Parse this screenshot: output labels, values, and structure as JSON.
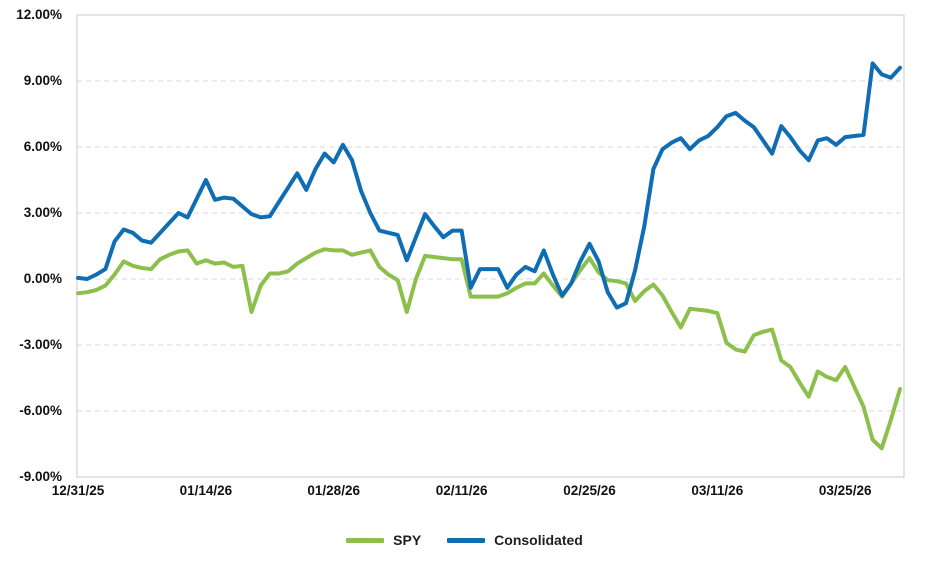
{
  "chart_data": {
    "type": "line",
    "title": "",
    "xlabel": "",
    "ylabel": "",
    "ylim": [
      -9,
      12
    ],
    "grid": "horizontal-dashed",
    "legend_position": "bottom-center",
    "background_color": "#ffffff",
    "gridline_color": "#d9d9d9",
    "border_color": "#c8c8c8",
    "axis_text_color": "#111111",
    "y_ticks": [
      "12.00%",
      "9.00%",
      "6.00%",
      "3.00%",
      "0.00%",
      "-3.00%",
      "-6.00%",
      "-9.00%"
    ],
    "y_tick_values": [
      12,
      9,
      6,
      3,
      0,
      -3,
      -6,
      -9
    ],
    "gridline_values": [
      9,
      6,
      3,
      0,
      -3,
      -6
    ],
    "x_labels": [
      "12/31/25",
      "01/14/26",
      "01/28/26",
      "02/11/26",
      "02/25/26",
      "03/11/26",
      "03/25/26"
    ],
    "x_label_days": [
      0,
      14,
      28,
      42,
      56,
      70,
      84
    ],
    "days_total": 91,
    "x_start_date": "12/31/25",
    "x_end_date": "03/31/26",
    "series": [
      {
        "name": "SPY",
        "color": "#8dbf4b",
        "values": [
          -0.65,
          -0.6,
          -0.5,
          -0.3,
          0.2,
          0.8,
          0.6,
          0.5,
          0.45,
          0.9,
          1.1,
          1.25,
          1.3,
          0.7,
          0.85,
          0.7,
          0.75,
          0.55,
          0.6,
          -1.5,
          -0.3,
          0.25,
          0.25,
          0.35,
          0.7,
          0.95,
          1.2,
          1.35,
          1.3,
          1.3,
          1.1,
          1.2,
          1.3,
          0.55,
          0.2,
          -0.05,
          -1.5,
          0.0,
          1.05,
          1.0,
          0.95,
          0.9,
          0.9,
          -0.8,
          -0.8,
          -0.8,
          -0.8,
          -0.65,
          -0.4,
          -0.2,
          -0.2,
          0.25,
          -0.3,
          -0.8,
          -0.2,
          0.4,
          0.95,
          0.3,
          -0.05,
          -0.1,
          -0.2,
          -1.0,
          -0.55,
          -0.25,
          -0.75,
          -1.5,
          -2.2,
          -1.35,
          -1.4,
          -1.45,
          -1.55,
          -2.9,
          -3.2,
          -3.3,
          -2.55,
          -2.4,
          -2.3,
          -3.7,
          -4.0,
          -4.7,
          -5.35,
          -4.2,
          -4.45,
          -4.6,
          -4.0,
          -4.9,
          -5.8,
          -7.3,
          -7.7,
          -6.4,
          -5.0
        ]
      },
      {
        "name": "Consolidated",
        "color": "#0f6db4",
        "values": [
          0.05,
          0.0,
          0.2,
          0.45,
          1.7,
          2.25,
          2.1,
          1.75,
          1.65,
          2.1,
          2.55,
          3.0,
          2.8,
          3.65,
          4.5,
          3.6,
          3.7,
          3.65,
          3.3,
          2.95,
          2.8,
          2.85,
          3.5,
          4.15,
          4.8,
          4.05,
          5.0,
          5.7,
          5.3,
          6.1,
          5.4,
          4.0,
          3.0,
          2.2,
          2.1,
          2.0,
          0.85,
          1.9,
          2.95,
          2.4,
          1.9,
          2.2,
          2.2,
          -0.4,
          0.45,
          0.45,
          0.45,
          -0.4,
          0.2,
          0.55,
          0.35,
          1.3,
          0.2,
          -0.75,
          -0.2,
          0.8,
          1.6,
          0.8,
          -0.6,
          -1.3,
          -1.1,
          0.4,
          2.4,
          5.0,
          5.9,
          6.2,
          6.4,
          5.9,
          6.3,
          6.5,
          6.9,
          7.4,
          7.55,
          7.2,
          6.9,
          6.3,
          5.7,
          6.95,
          6.45,
          5.85,
          5.4,
          6.3,
          6.4,
          6.1,
          6.45,
          6.5,
          6.55,
          9.8,
          9.3,
          9.15,
          9.6
        ]
      }
    ]
  },
  "legend": {
    "items": [
      {
        "label": "SPY",
        "swatch": "green-line-swatch"
      },
      {
        "label": "Consolidated",
        "swatch": "blue-line-swatch"
      }
    ]
  }
}
